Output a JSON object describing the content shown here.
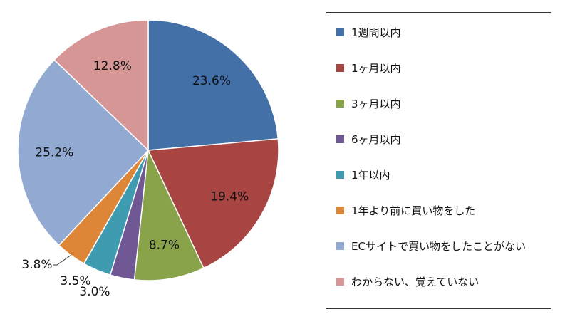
{
  "chart_data": {
    "type": "pie",
    "categories": [
      "1週間以内",
      "1ヶ月以内",
      "3ヶ月以内",
      "6ヶ月以内",
      "1年以内",
      "1年より前に買い物をした",
      "ECサイトで買い物をしたことがない",
      "わからない、覚えていない"
    ],
    "values": [
      23.6,
      19.4,
      8.7,
      3.0,
      3.5,
      3.8,
      25.2,
      12.8
    ],
    "value_labels": [
      "23.6%",
      "19.4%",
      "8.7%",
      "3.0%",
      "3.5%",
      "3.8%",
      "25.2%",
      "12.8%"
    ],
    "colors": [
      "#4470a8",
      "#a84442",
      "#88a34a",
      "#6f5893",
      "#3f9bb0",
      "#dd8638",
      "#92aad2",
      "#d69696"
    ],
    "start_angle": "12 o'clock",
    "direction": "clockwise",
    "legend_position": "right",
    "title": ""
  }
}
